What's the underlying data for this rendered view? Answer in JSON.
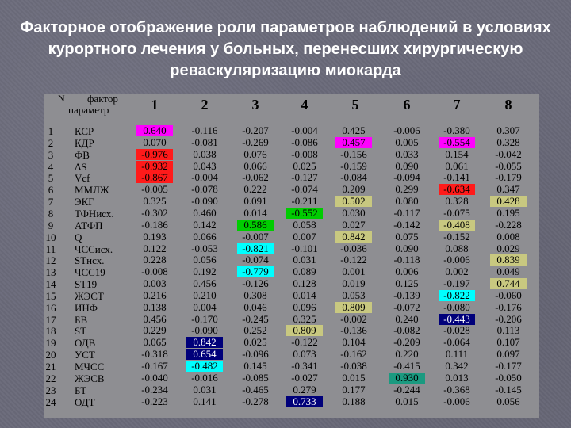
{
  "title": "Факторное отображение роли параметров наблюдений в условиях курортного лечения у больных, перенесших хирургическую реваскуляризацию миокарда",
  "header": {
    "n": "N",
    "factor": "фактор",
    "parameter": "параметр",
    "columns": [
      "1",
      "2",
      "3",
      "4",
      "5",
      "6",
      "7",
      "8"
    ]
  },
  "highlight_colors": {
    "magenta": "#ff00ff",
    "red": "#ff1a1a",
    "green": "#00cc00",
    "cyan": "#00ffff",
    "navy": "#00007a",
    "olive": "#c8c880",
    "teal": "#1a9a80"
  },
  "rows": [
    {
      "n": "1",
      "param": "КСР",
      "values": [
        "0.640",
        "-0.116",
        "-0.207",
        "-0.004",
        "0.425",
        "-0.006",
        "-0.380",
        "0.307"
      ],
      "hl": [
        "magenta",
        "",
        "",
        "",
        "",
        "",
        "",
        ""
      ]
    },
    {
      "n": "2",
      "param": "КДР",
      "values": [
        "0.070",
        "-0.081",
        "-0.269",
        "-0.086",
        "0.457",
        "0.005",
        "-0.554",
        "0.328"
      ],
      "hl": [
        "",
        "",
        "",
        "",
        "magenta",
        "",
        "magenta",
        ""
      ]
    },
    {
      "n": "3",
      "param": "ФВ",
      "values": [
        "-0.976",
        "0.038",
        "0.076",
        "-0.008",
        "-0.156",
        "0.033",
        "0.154",
        "-0.042"
      ],
      "hl": [
        "red",
        "",
        "",
        "",
        "",
        "",
        "",
        ""
      ]
    },
    {
      "n": "4",
      "param": "ΔS",
      "values": [
        "-0.932",
        "0.043",
        "0.066",
        "0.025",
        "-0.159",
        "0.090",
        "0.061",
        "-0.055"
      ],
      "hl": [
        "red",
        "",
        "",
        "",
        "",
        "",
        "",
        ""
      ]
    },
    {
      "n": "5",
      "param": "Vcf",
      "values": [
        "-0.867",
        "-0.004",
        "-0.062",
        "-0.127",
        "-0.084",
        "-0.094",
        "-0.141",
        "-0.179"
      ],
      "hl": [
        "red",
        "",
        "",
        "",
        "",
        "",
        "",
        ""
      ]
    },
    {
      "n": "6",
      "param": "ММЛЖ",
      "values": [
        "-0.005",
        "-0.078",
        "0.222",
        "-0.074",
        "0.209",
        "0.299",
        "-0.634",
        "0.347"
      ],
      "hl": [
        "",
        "",
        "",
        "",
        "",
        "",
        "red",
        ""
      ]
    },
    {
      "n": "7",
      "param": "ЭКГ",
      "values": [
        "0.325",
        "-0.090",
        "0.091",
        "-0.211",
        "0.502",
        "0.080",
        "0.328",
        "0.428"
      ],
      "hl": [
        "",
        "",
        "",
        "",
        "olive",
        "",
        "",
        "olive"
      ]
    },
    {
      "n": "8",
      "param": "ТФНисх.",
      "values": [
        "-0.302",
        "0.460",
        "0.014",
        "-0.552",
        "0.030",
        "-0.117",
        "-0.075",
        "0.195"
      ],
      "hl": [
        "",
        "",
        "",
        "green",
        "",
        "",
        "",
        ""
      ]
    },
    {
      "n": "9",
      "param": "АТФП",
      "values": [
        "-0.186",
        "0.142",
        "0.586",
        "0.058",
        "0.027",
        "-0.142",
        "-0.408",
        "-0.228"
      ],
      "hl": [
        "",
        "",
        "green",
        "",
        "",
        "",
        "olive",
        ""
      ]
    },
    {
      "n": "10",
      "param": "Q",
      "values": [
        "0.193",
        "0.066",
        "-0.007",
        "0.007",
        "0.842",
        "0.075",
        "-0.152",
        "0.008"
      ],
      "hl": [
        "",
        "",
        "",
        "",
        "olive",
        "",
        "",
        ""
      ]
    },
    {
      "n": "11",
      "param": "ЧССисх.",
      "values": [
        "0.122",
        "-0.053",
        "-0.821",
        "-0.101",
        "-0.036",
        "0.090",
        "0.088",
        "0.029"
      ],
      "hl": [
        "",
        "",
        "cyan",
        "",
        "",
        "",
        "",
        ""
      ]
    },
    {
      "n": "12",
      "param": "STнсх.",
      "values": [
        "0.228",
        "0.056",
        "-0.074",
        "0.031",
        "-0.122",
        "-0.118",
        "-0.006",
        "0.839"
      ],
      "hl": [
        "",
        "",
        "",
        "",
        "",
        "",
        "",
        "olive"
      ]
    },
    {
      "n": "13",
      "param": "ЧСС19",
      "values": [
        "-0.008",
        "0.192",
        "-0.779",
        "0.089",
        "0.001",
        "0.006",
        "0.002",
        "0.049"
      ],
      "hl": [
        "",
        "",
        "cyan",
        "",
        "",
        "",
        "",
        ""
      ]
    },
    {
      "n": "14",
      "param": "ST19",
      "values": [
        "0.003",
        "0.456",
        "-0.126",
        "0.128",
        "0.019",
        "0.125",
        "-0.197",
        "0.744"
      ],
      "hl": [
        "",
        "",
        "",
        "",
        "",
        "",
        "",
        "olive"
      ]
    },
    {
      "n": "15",
      "param": "ЖЭСТ",
      "values": [
        "0.216",
        "0.210",
        "0.308",
        "0.014",
        "0.053",
        "-0.139",
        "-0.822",
        "-0.060"
      ],
      "hl": [
        "",
        "",
        "",
        "",
        "",
        "",
        "cyan",
        ""
      ]
    },
    {
      "n": "16",
      "param": "ИНФ",
      "values": [
        "0.138",
        "0.004",
        "0.046",
        "0.096",
        "0.809",
        "-0.072",
        "-0.080",
        "-0.176"
      ],
      "hl": [
        "",
        "",
        "",
        "",
        "olive",
        "",
        "",
        ""
      ]
    },
    {
      "n": "17",
      "param": "БВ",
      "values": [
        "0.456",
        "-0.170",
        "-0.245",
        "0.325",
        "-0.002",
        "0.240",
        "-0.443",
        "-0.206"
      ],
      "hl": [
        "",
        "",
        "",
        "",
        "",
        "",
        "navy",
        ""
      ]
    },
    {
      "n": "18",
      "param": "ST",
      "values": [
        "0.229",
        "-0.090",
        "0.252",
        "0.809",
        "-0.136",
        "-0.082",
        "-0.028",
        "0.113"
      ],
      "hl": [
        "",
        "",
        "",
        "olive",
        "",
        "",
        "",
        ""
      ]
    },
    {
      "n": "19",
      "param": "ОДВ",
      "values": [
        "0.065",
        "0.842",
        "0.025",
        "-0.122",
        "0.104",
        "-0.209",
        "-0.064",
        "0.107"
      ],
      "hl": [
        "",
        "navy",
        "",
        "",
        "",
        "",
        "",
        ""
      ]
    },
    {
      "n": "20",
      "param": "УСТ",
      "values": [
        "-0.318",
        "0.654",
        "-0.096",
        "0.073",
        "-0.162",
        "0.220",
        "0.111",
        "0.097"
      ],
      "hl": [
        "",
        "navy",
        "",
        "",
        "",
        "",
        "",
        ""
      ]
    },
    {
      "n": "21",
      "param": "МЧСС",
      "values": [
        "-0.167",
        "-0.482",
        "0.145",
        "-0.341",
        "-0.038",
        "-0.415",
        "0.342",
        "-0.177"
      ],
      "hl": [
        "",
        "cyan",
        "",
        "",
        "",
        "",
        "",
        ""
      ]
    },
    {
      "n": "22",
      "param": "ЖЭСВ",
      "values": [
        "-0.040",
        "-0.016",
        "-0.085",
        "-0.027",
        "0.015",
        "0.930",
        "0.013",
        "-0.050"
      ],
      "hl": [
        "",
        "",
        "",
        "",
        "",
        "teal",
        "",
        ""
      ]
    },
    {
      "n": "23",
      "param": "БТ",
      "values": [
        "-0.234",
        "0.031",
        "-0.465",
        "0.279",
        "0.177",
        "-0.244",
        "-0.368",
        "-0.145"
      ],
      "hl": [
        "",
        "",
        "",
        "",
        "",
        "",
        "",
        ""
      ]
    },
    {
      "n": "24",
      "param": "ОДТ",
      "values": [
        "-0.223",
        "0.141",
        "-0.278",
        "0.733",
        "0.188",
        "0.015",
        "-0.006",
        "0.056"
      ],
      "hl": [
        "",
        "",
        "",
        "navy",
        "",
        "",
        "",
        ""
      ]
    }
  ]
}
